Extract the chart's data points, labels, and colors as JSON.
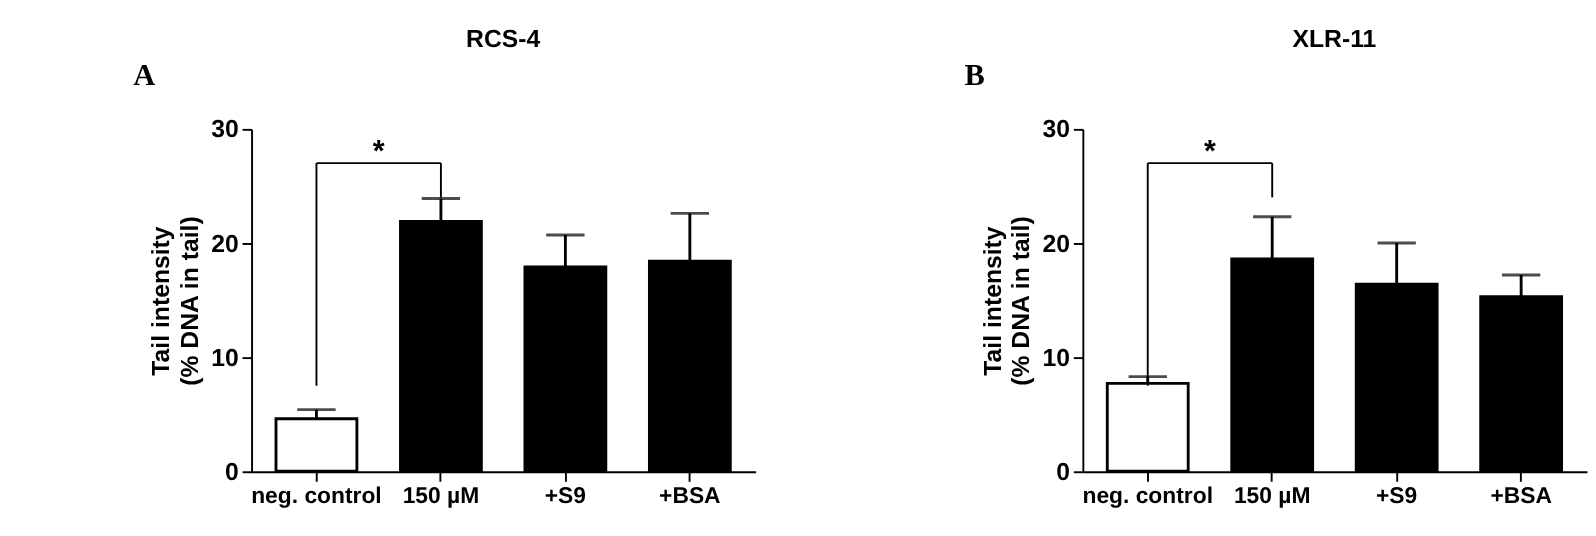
{
  "chart_data": [
    {
      "type": "bar",
      "title": "RCS-4",
      "ylabel": "Tail intensity\n(% DNA in tail)",
      "annotations": [
        "A",
        "*"
      ],
      "categories": [
        "neg. control",
        "150 µM",
        "+S9",
        "+BSA"
      ],
      "values": [
        4.6,
        21.9,
        17.9,
        18.4
      ],
      "errors": [
        [
          4.6,
          5.4
        ],
        [
          21.9,
          23.9
        ],
        [
          17.9,
          20.7
        ],
        [
          18.4,
          22.6
        ]
      ],
      "colors": [
        "#ffffff",
        "#000000",
        "#000000",
        "#000000"
      ],
      "ylim": [
        0,
        30
      ],
      "yticks": [
        0,
        10,
        20,
        30
      ],
      "grid": false
    },
    {
      "type": "bar",
      "title": "XLR-11",
      "ylabel": "Tail intensity\n(% DNA in tail)",
      "annotations": [
        "B",
        "*"
      ],
      "categories": [
        "neg. control",
        "150 µM",
        "+S9",
        "+BSA"
      ],
      "values": [
        7.7,
        18.6,
        16.4,
        15.3
      ],
      "errors": [
        [
          7.7,
          8.3
        ],
        [
          18.6,
          22.3
        ],
        [
          16.4,
          20.0
        ],
        [
          15.3,
          17.2
        ]
      ],
      "colors": [
        "#ffffff",
        "#000000",
        "#000000",
        "#000000"
      ],
      "ylim": [
        0,
        30
      ],
      "yticks": [
        0,
        10,
        20,
        30
      ],
      "grid": false
    }
  ]
}
